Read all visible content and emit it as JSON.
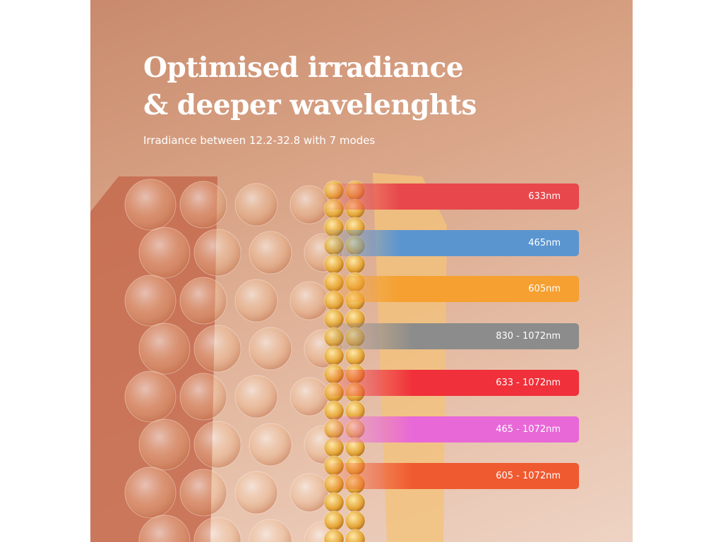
{
  "header": {
    "title": "Optimised irradiance & deeper wavelenghts",
    "subtitle": "Irradiance between 12.2-32.8 with 7 modes"
  },
  "bands": [
    {
      "label": "633nm"
    },
    {
      "label": "465nm"
    },
    {
      "label": "605nm"
    },
    {
      "label": "830 - 1072nm"
    },
    {
      "label": "633 - 1072nm"
    },
    {
      "label": "465 - 1072nm"
    },
    {
      "label": "605 - 1072nm"
    }
  ]
}
